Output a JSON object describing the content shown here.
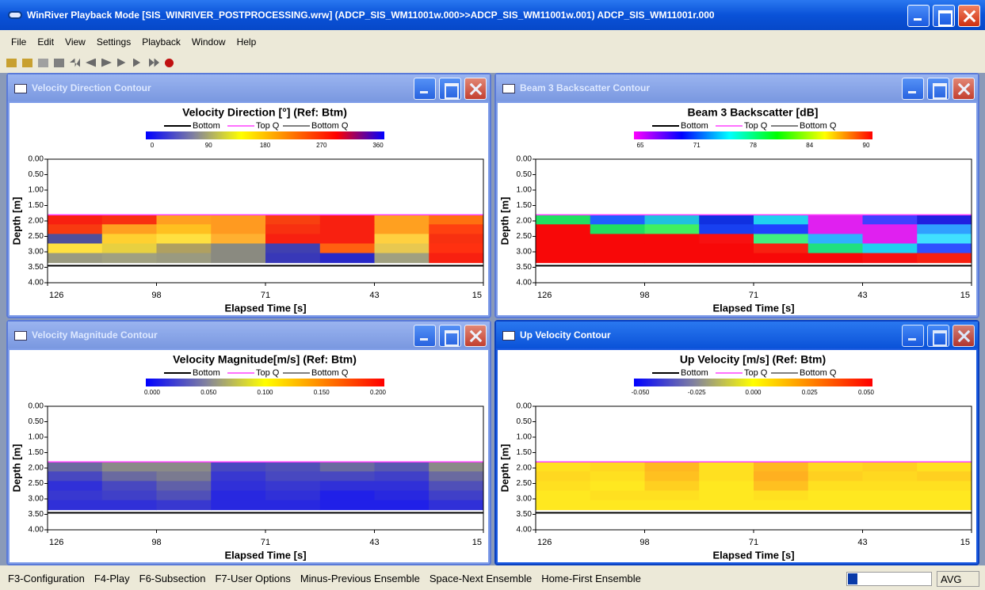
{
  "window": {
    "title": "WinRiver Playback Mode [SIS_WINRIVER_POSTPROCESSING.wrw] (ADCP_SIS_WM11001w.000>>ADCP_SIS_WM11001w.001) ADCP_SIS_WM11001r.000"
  },
  "menu": [
    "File",
    "Edit",
    "View",
    "Settings",
    "Playback",
    "Window",
    "Help"
  ],
  "panels": [
    {
      "window_title": "Velocity Direction Contour",
      "active": false,
      "title": "Velocity Direction [°] (Ref: Btm)",
      "legend": [
        "Bottom",
        "Top Q",
        "Bottom Q"
      ],
      "colorbar": {
        "colors": [
          "#0000ff",
          "#8080a0",
          "#ffff00",
          "#ff8000",
          "#ff0000",
          "#0000ff"
        ],
        "ticks": [
          "0",
          "90",
          "180",
          "270",
          "360"
        ]
      },
      "ylabel": "Depth [m]",
      "yticks": [
        "0.00",
        "0.50",
        "1.00",
        "1.50",
        "2.00",
        "2.50",
        "3.00",
        "3.50",
        "4.00"
      ],
      "xlabel": "Elapsed Time [s]",
      "xticks": [
        "126",
        "98",
        "71",
        "43",
        "15"
      ],
      "cells": [
        [
          "#f82010",
          "#f83010",
          "#ffa020",
          "#ff9a20",
          "#f84010",
          "#f82010",
          "#ffa020",
          "#ff7010"
        ],
        [
          "#f83a10",
          "#ffa020",
          "#ffc020",
          "#ff9a20",
          "#f83010",
          "#f82010",
          "#ffa020",
          "#ff4010"
        ],
        [
          "#50509a",
          "#ffd030",
          "#ffe040",
          "#ffb030",
          "#f82010",
          "#f82010",
          "#ffd040",
          "#f83010"
        ],
        [
          "#ffe040",
          "#e8d040",
          "#b0a060",
          "#8a8a80",
          "#4040b0",
          "#ff6010",
          "#e8c850",
          "#ff3010"
        ],
        [
          "#9a9a80",
          "#a0a080",
          "#9a9a80",
          "#8a8a80",
          "#3838b8",
          "#2828c8",
          "#a0a080",
          "#f82010"
        ]
      ]
    },
    {
      "window_title": "Beam 3 Backscatter Contour",
      "active": false,
      "title": "Beam 3 Backscatter [dB]",
      "legend": [
        "Bottom",
        "Top Q",
        "Bottom Q"
      ],
      "colorbar": {
        "colors": [
          "#ff00ff",
          "#0000ff",
          "#00ffff",
          "#00ff00",
          "#ffff00",
          "#ff0000"
        ],
        "ticks": [
          "65",
          "71",
          "78",
          "84",
          "90"
        ]
      },
      "ylabel": "Depth [m]",
      "yticks": [
        "0.00",
        "0.50",
        "1.00",
        "1.50",
        "2.00",
        "2.50",
        "3.00",
        "3.50",
        "4.00"
      ],
      "xlabel": "Elapsed Time [s]",
      "xticks": [
        "126",
        "98",
        "71",
        "43",
        "15"
      ],
      "cells": [
        [
          "#20e060",
          "#2060ff",
          "#20c0e0",
          "#1030e0",
          "#20d0f0",
          "#e020f0",
          "#4040ff",
          "#2020e0"
        ],
        [
          "#f80808",
          "#20e060",
          "#40f060",
          "#1840f0",
          "#2040ff",
          "#e020f0",
          "#e020f0",
          "#30a0ff"
        ],
        [
          "#f80808",
          "#f80808",
          "#f80808",
          "#f81010",
          "#40f080",
          "#30b0ff",
          "#e020f0",
          "#40e0ff"
        ],
        [
          "#f80808",
          "#f80808",
          "#f80808",
          "#f80808",
          "#f82010",
          "#20e080",
          "#20d0f0",
          "#3050ff"
        ],
        [
          "#f80808",
          "#f80808",
          "#f80808",
          "#f80808",
          "#f80808",
          "#f80808",
          "#f81010",
          "#f82010"
        ]
      ]
    },
    {
      "window_title": "Velocity Magnitude Contour",
      "active": false,
      "title": "Velocity Magnitude[m/s] (Ref: Btm)",
      "legend": [
        "Bottom",
        "Top Q",
        "Bottom Q"
      ],
      "colorbar": {
        "colors": [
          "#0000ff",
          "#8080a0",
          "#ffff00",
          "#ff8000",
          "#ff0000"
        ],
        "ticks": [
          "0.000",
          "0.050",
          "0.100",
          "0.150",
          "0.200"
        ]
      },
      "ylabel": "Depth [m]",
      "yticks": [
        "0.00",
        "0.50",
        "1.00",
        "1.50",
        "2.00",
        "2.50",
        "3.00",
        "3.50",
        "4.00"
      ],
      "xlabel": "Elapsed Time [s]",
      "xticks": [
        "126",
        "98",
        "71",
        "43",
        "15"
      ],
      "cells": [
        [
          "#6a6aa0",
          "#8a8a88",
          "#8a8a88",
          "#4848c0",
          "#5050b8",
          "#6a6aa0",
          "#5858b0",
          "#8a8a88"
        ],
        [
          "#4848c0",
          "#6a6aa0",
          "#7a7a90",
          "#3838d0",
          "#4848c0",
          "#4848c0",
          "#4040c8",
          "#6a6aa0"
        ],
        [
          "#3030d8",
          "#4848c0",
          "#6060a8",
          "#3030d8",
          "#3838d0",
          "#3030d8",
          "#3030d8",
          "#5050b8"
        ],
        [
          "#3838d0",
          "#4040c8",
          "#5050b8",
          "#2828e0",
          "#3030d8",
          "#2020e8",
          "#2828e0",
          "#4040c8"
        ],
        [
          "#3030d8",
          "#3030d8",
          "#3838d0",
          "#2828e0",
          "#2828e0",
          "#2020e8",
          "#2020e8",
          "#3030d8"
        ]
      ]
    },
    {
      "window_title": "Up Velocity Contour",
      "active": true,
      "title": "Up Velocity [m/s] (Ref: Btm)",
      "legend": [
        "Bottom",
        "Top Q",
        "Bottom Q"
      ],
      "colorbar": {
        "colors": [
          "#0000ff",
          "#8080a0",
          "#ffff00",
          "#ff8000",
          "#ff0000"
        ],
        "ticks": [
          "-0.050",
          "-0.025",
          "0.000",
          "0.025",
          "0.050"
        ]
      },
      "ylabel": "Depth [m]",
      "yticks": [
        "0.00",
        "0.50",
        "1.00",
        "1.50",
        "2.00",
        "2.50",
        "3.00",
        "3.50",
        "4.00"
      ],
      "xlabel": "Elapsed Time [s]",
      "xticks": [
        "126",
        "98",
        "71",
        "43",
        "15"
      ],
      "cells": [
        [
          "#ffe020",
          "#ffd820",
          "#ffb820",
          "#ffe020",
          "#ffb820",
          "#ffd820",
          "#ffd020",
          "#ffe020"
        ],
        [
          "#ffd820",
          "#ffe020",
          "#ffc020",
          "#ffe020",
          "#ffb020",
          "#ffd020",
          "#ffd820",
          "#ffd020"
        ],
        [
          "#ffe020",
          "#ffe820",
          "#ffd020",
          "#ffe820",
          "#ffc020",
          "#ffe020",
          "#ffe020",
          "#ffe020"
        ],
        [
          "#ffe820",
          "#ffe020",
          "#ffe020",
          "#ffe820",
          "#ffe020",
          "#ffe820",
          "#ffe820",
          "#ffe820"
        ],
        [
          "#ffe820",
          "#ffe820",
          "#ffe820",
          "#ffe820",
          "#ffe820",
          "#ffe820",
          "#ffe820",
          "#ffe820"
        ]
      ]
    }
  ],
  "status": {
    "items": [
      "F3-Configuration",
      "F4-Play",
      "F6-Subsection",
      "F7-User Options",
      "Minus-Previous Ensemble",
      "Space-Next Ensemble",
      "Home-First Ensemble"
    ],
    "mode": "AVG"
  }
}
